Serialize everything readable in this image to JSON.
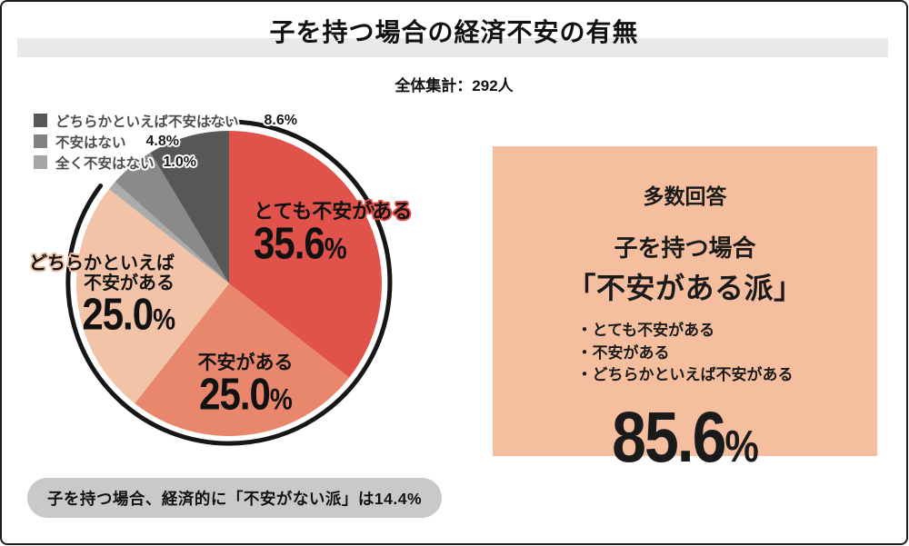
{
  "page": {
    "title": "子を持つ場合の経済不安の有無",
    "subtitle": "全体集計：292人",
    "footnote": "子を持つ場合、経済的に「不安がない派」は14.4%"
  },
  "colors": {
    "accent_red": "#E0524A",
    "salmon": "#E8876C",
    "peach": "#F2C3A6",
    "panel_bg": "#F5BF9F",
    "gray_dark": "#575757",
    "gray_mid": "#8A8A8A",
    "gray_light": "#ABABAB",
    "pill_bg": "#C9C9C9",
    "title_band": "#E9E9E9"
  },
  "chart_data": {
    "type": "pie",
    "title": "子を持つ場合の経済不安の有無",
    "total_label": "全体集計：292人",
    "total_n": 292,
    "unit": "%",
    "start_angle_deg": -90,
    "direction": "clockwise",
    "slices": [
      {
        "label": "とても不安がある",
        "value": 35.6,
        "color": "#E0524A"
      },
      {
        "label": "不安がある",
        "value": 25.0,
        "color": "#E8876C"
      },
      {
        "label": "どちらかといえば不安がある",
        "value": 25.0,
        "color": "#F2C3A6"
      },
      {
        "label": "全く不安はない",
        "value": 1.0,
        "color": "#ABABAB"
      },
      {
        "label": "不安はない",
        "value": 4.8,
        "color": "#8A8A8A"
      },
      {
        "label": "どちらかといえば不安はない",
        "value": 8.6,
        "color": "#575757"
      }
    ]
  },
  "legend": {
    "items": [
      {
        "label": "どちらかといえば不安はない",
        "value": "8.6%",
        "color": "#575757"
      },
      {
        "label": "不安はない",
        "value": "4.8%",
        "color": "#828282"
      },
      {
        "label": "全く不安はない",
        "value": "1.0%",
        "color": "#A6A6A6"
      }
    ]
  },
  "pie_labels": {
    "very": {
      "text": "とても不安がある",
      "num": "35.6",
      "pct": "%"
    },
    "some": {
      "text": "不安がある",
      "num": "25.0",
      "pct": "%"
    },
    "rather": {
      "line1": "どちらかといえば",
      "line2": "不安がある",
      "num": "25.0",
      "pct": "%"
    }
  },
  "panel": {
    "heading": "多数回答",
    "subheading_line1": "子を持つ場合",
    "subheading_line2": "「不安がある派」",
    "bullets": [
      "・とても不安がある",
      "・不安がある",
      "・どちらかといえば不安がある"
    ],
    "big_num": "85.6",
    "pct": "%"
  }
}
